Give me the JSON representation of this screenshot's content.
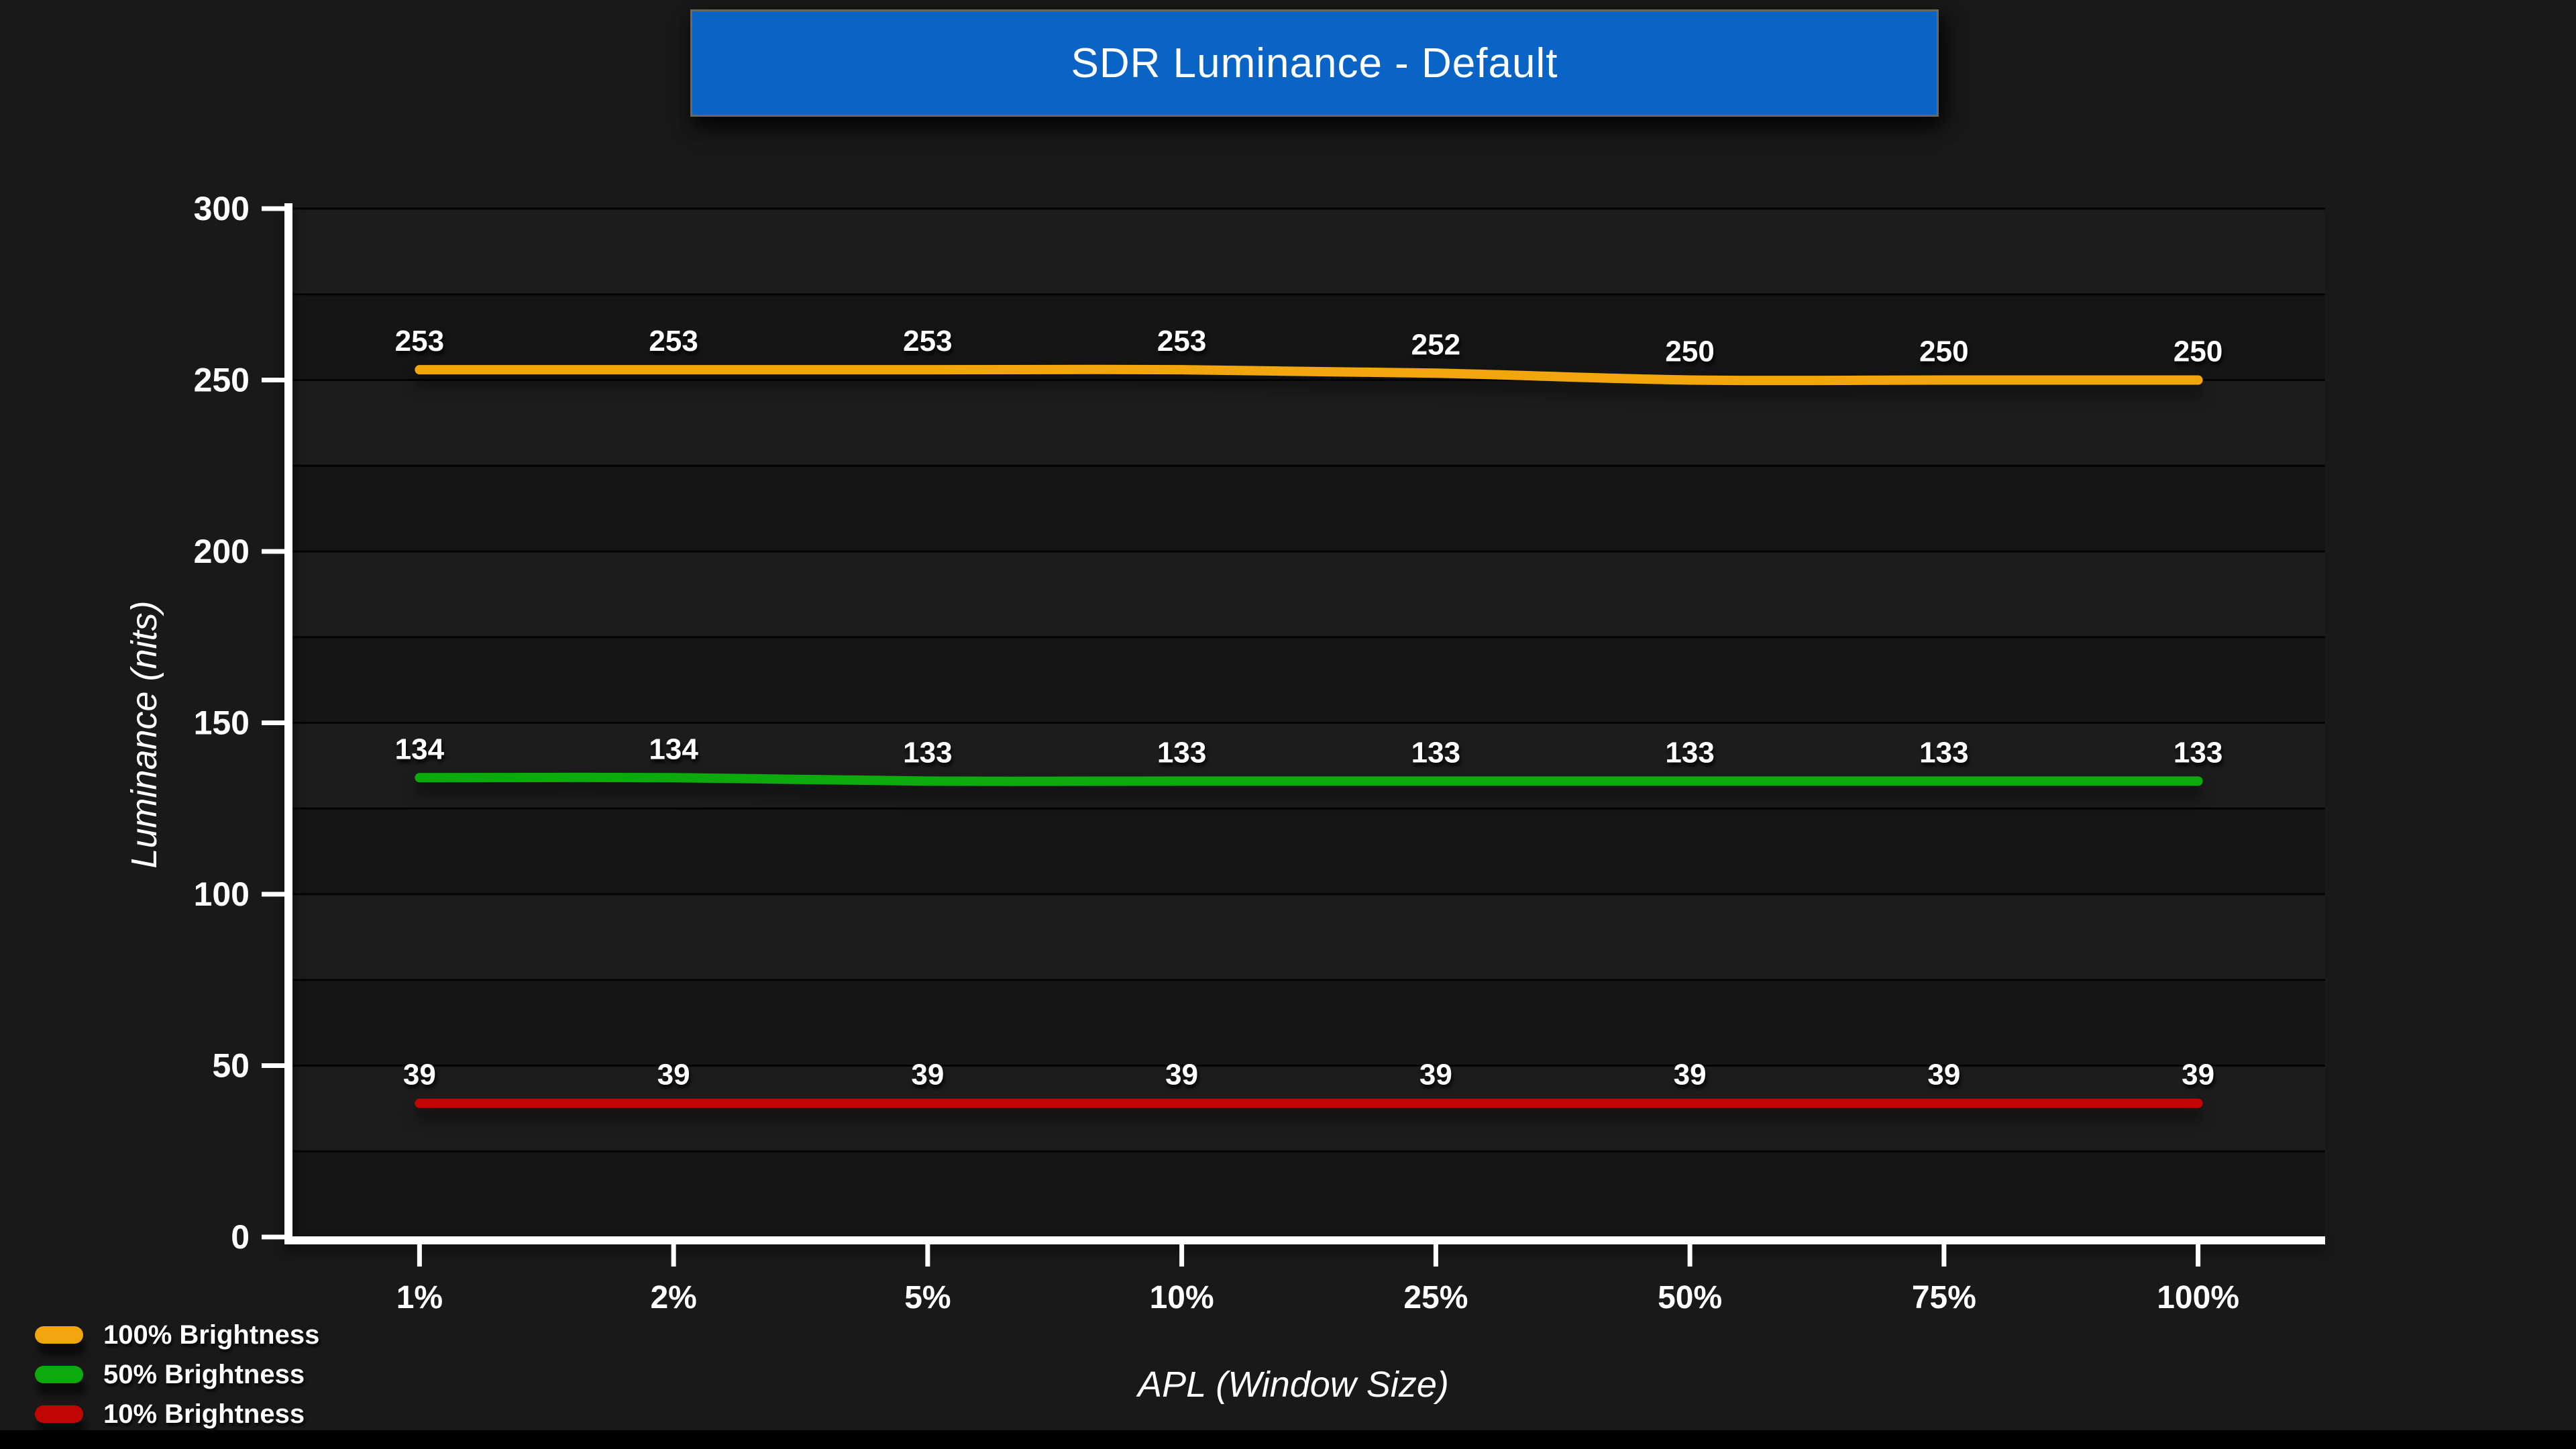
{
  "page": {
    "background": "#191919",
    "bottom_bar_color": "#000000"
  },
  "title": {
    "text": "SDR Luminance - Default",
    "banner_bg": "#0a64c6",
    "banner_border": "#6a6a5c",
    "text_color": "#ffffff"
  },
  "chart_data": {
    "type": "line",
    "title": "SDR Luminance - Default",
    "xlabel": "APL (Window Size)",
    "ylabel": "Luminance (nits)",
    "categories": [
      "1%",
      "2%",
      "5%",
      "10%",
      "25%",
      "50%",
      "75%",
      "100%"
    ],
    "series": [
      {
        "name": "100% Brightness",
        "color": "#f0a60c",
        "values": [
          253,
          253,
          253,
          253,
          252,
          250,
          250,
          250
        ]
      },
      {
        "name": "50% Brightness",
        "color": "#0caa0c",
        "values": [
          134,
          134,
          133,
          133,
          133,
          133,
          133,
          133
        ]
      },
      {
        "name": "10% Brightness",
        "color": "#c00505",
        "values": [
          39,
          39,
          39,
          39,
          39,
          39,
          39,
          39
        ]
      }
    ],
    "ylim": [
      0,
      300
    ],
    "yticks": [
      0,
      50,
      100,
      150,
      200,
      250,
      300
    ],
    "grid_step": 25,
    "grid": true,
    "legend_position": "bottom-left",
    "band_colors": [
      "#1c1c1c",
      "#151515"
    ],
    "gridline_color": "#040404",
    "axis_color": "#ffffff",
    "label_color": "#ffffff"
  }
}
